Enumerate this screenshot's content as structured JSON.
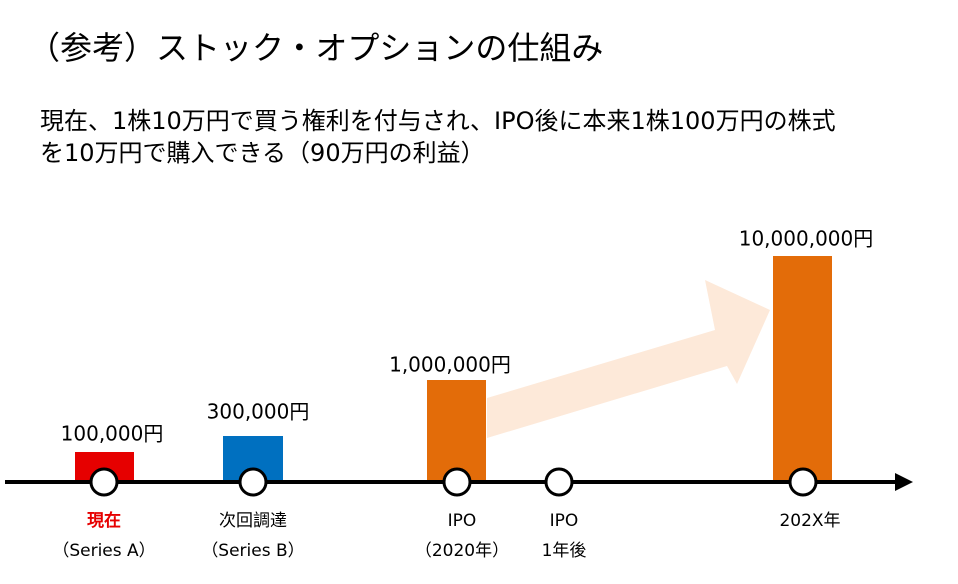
{
  "header": {
    "title": "（参考）ストック・オプションの仕組み",
    "description": [
      "現在、1株10万円で買う権利を付与され、IPO後に本来1株100万円の株式",
      "を10万円で購入できる（90万円の利益）"
    ]
  },
  "stages": [
    {
      "value_label": "100,000円",
      "label": [
        "現在",
        "（Series A）"
      ]
    },
    {
      "value_label": "300,000円",
      "label": [
        "次回調達",
        "（Series B）"
      ]
    },
    {
      "value_label": "1,000,000円",
      "label": [
        "IPO",
        "（2020年）"
      ]
    },
    {
      "label": [
        "IPO",
        "1年後"
      ]
    },
    {
      "value_label": "10,000,000円",
      "label": [
        "202X年"
      ]
    }
  ]
}
